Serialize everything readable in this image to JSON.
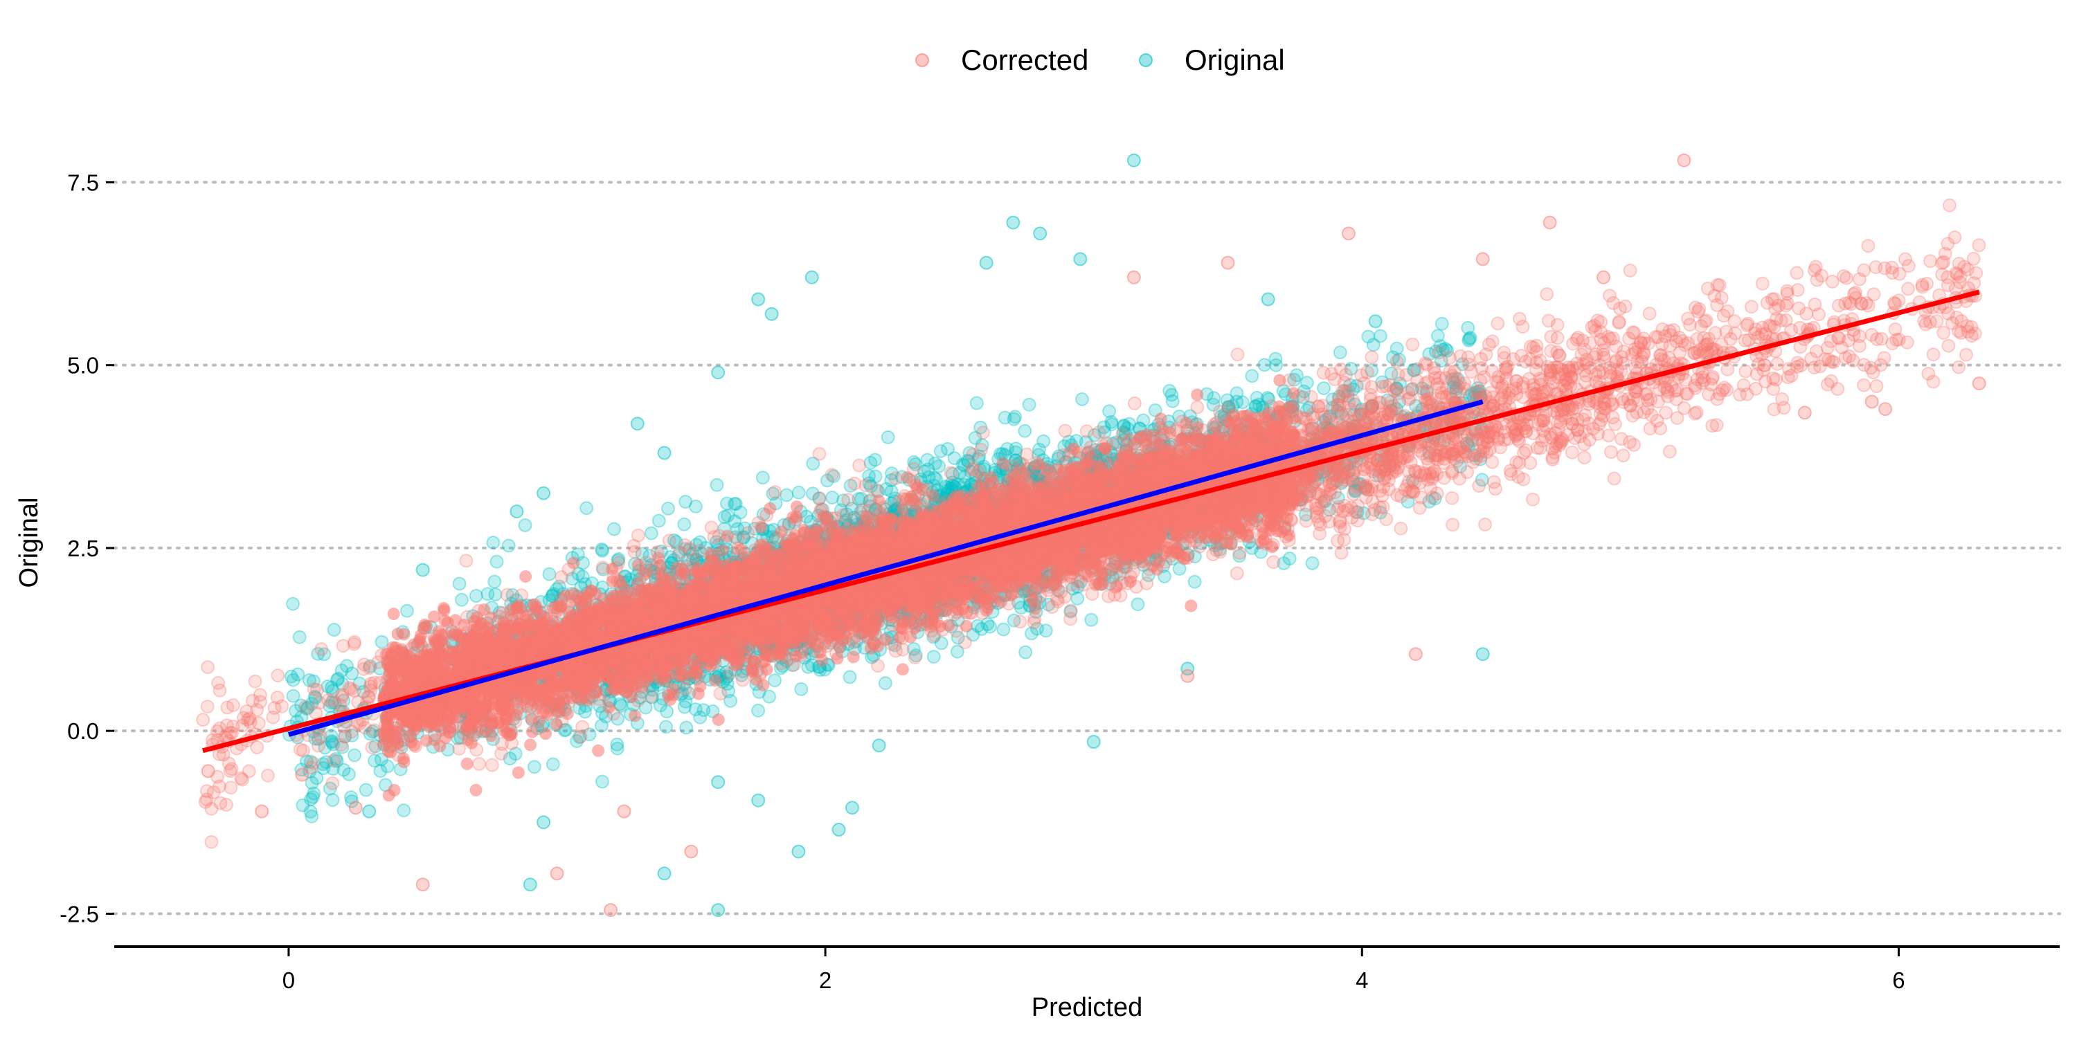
{
  "chart_data": {
    "type": "scatter",
    "title": "",
    "xlabel": "Predicted",
    "ylabel": "Original",
    "xlim": [
      -0.65,
      6.6
    ],
    "ylim": [
      -2.95,
      8.1
    ],
    "x_ticks": [
      0,
      2,
      4,
      6
    ],
    "x_tick_labels": [
      "0",
      "2",
      "4",
      "6"
    ],
    "y_ticks": [
      -2.5,
      0,
      2.5,
      5,
      7.5
    ],
    "y_tick_labels": [
      "-2.5",
      "0.0",
      "2.5",
      "5.0",
      "7.5"
    ],
    "grid": "horizontal dotted",
    "legend_position": "top",
    "legend": [
      {
        "label": "Corrected",
        "color": "#F8766D"
      },
      {
        "label": "Original",
        "color": "#00BFC4"
      }
    ],
    "series": [
      {
        "name": "Original",
        "color": "#00BFC4",
        "approx_relationship": {
          "slope": 1.02,
          "intercept": 0.0,
          "x_range": [
            0.0,
            4.45
          ],
          "spread_sd": 0.55
        },
        "notable_points": [
          [
            3.15,
            7.8
          ],
          [
            2.7,
            6.95
          ],
          [
            2.8,
            6.8
          ],
          [
            1.95,
            6.2
          ],
          [
            2.95,
            6.45
          ],
          [
            2.6,
            6.4
          ],
          [
            1.75,
            5.9
          ],
          [
            1.8,
            5.7
          ],
          [
            3.65,
            5.9
          ],
          [
            4.05,
            5.6
          ],
          [
            1.6,
            4.9
          ],
          [
            1.3,
            4.2
          ],
          [
            1.4,
            3.8
          ],
          [
            0.95,
            3.25
          ],
          [
            0.85,
            3.0
          ],
          [
            0.5,
            2.2
          ],
          [
            4.45,
            1.05
          ],
          [
            3.35,
            0.85
          ],
          [
            3.0,
            -0.15
          ],
          [
            2.2,
            -0.2
          ],
          [
            1.6,
            -0.7
          ],
          [
            1.75,
            -0.95
          ],
          [
            2.05,
            -1.35
          ],
          [
            2.1,
            -1.05
          ],
          [
            1.9,
            -1.65
          ],
          [
            0.95,
            -1.25
          ],
          [
            0.9,
            -2.1
          ],
          [
            1.4,
            -1.95
          ],
          [
            1.6,
            -2.45
          ],
          [
            0.3,
            -1.1
          ]
        ]
      },
      {
        "name": "Corrected",
        "color": "#F8766D",
        "approx_relationship": {
          "slope": 0.95,
          "intercept": 0.08,
          "x_range": [
            -0.32,
            6.3
          ],
          "spread_sd": 0.45
        },
        "notable_points": [
          [
            5.2,
            7.8
          ],
          [
            4.7,
            6.95
          ],
          [
            3.95,
            6.8
          ],
          [
            4.9,
            6.2
          ],
          [
            3.5,
            6.4
          ],
          [
            4.45,
            6.45
          ],
          [
            3.15,
            6.2
          ],
          [
            5.35,
            5.1
          ],
          [
            5.5,
            5.0
          ],
          [
            5.9,
            4.5
          ],
          [
            5.95,
            4.4
          ],
          [
            6.3,
            4.75
          ],
          [
            5.65,
            4.35
          ],
          [
            4.2,
            1.05
          ],
          [
            3.35,
            0.75
          ],
          [
            -0.3,
            -0.55
          ],
          [
            -0.1,
            -1.1
          ],
          [
            0.05,
            -0.6
          ],
          [
            0.25,
            -1.05
          ],
          [
            0.5,
            -2.1
          ],
          [
            1.0,
            -1.95
          ],
          [
            1.2,
            -2.45
          ],
          [
            1.5,
            -1.65
          ],
          [
            1.25,
            -1.1
          ]
        ]
      }
    ],
    "fit_lines": [
      {
        "series": "Corrected",
        "color": "#FF0000",
        "x": [
          -0.32,
          6.3
        ],
        "y": [
          -0.27,
          6.0
        ]
      },
      {
        "series": "Original",
        "color": "#0000FF",
        "x": [
          0.0,
          4.45
        ],
        "y": [
          -0.05,
          4.5
        ]
      }
    ]
  }
}
